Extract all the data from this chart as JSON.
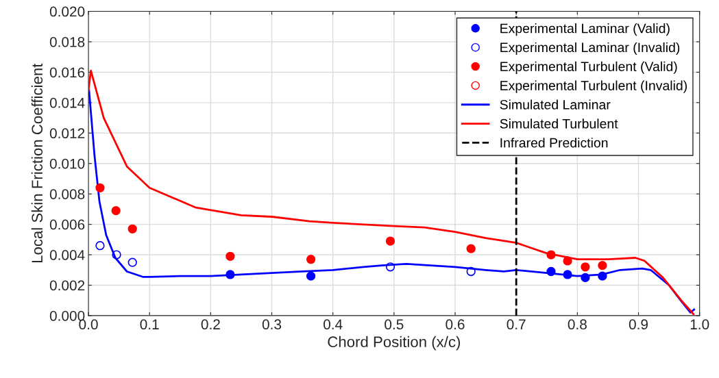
{
  "chart_data": {
    "type": "scatter",
    "xlabel": "Chord Position (x/c)",
    "ylabel": "Local Skin Friction Coefficient",
    "xlim": [
      0,
      1
    ],
    "xticks": [
      {
        "value": 0,
        "label": "0.0"
      },
      0.1,
      0.2,
      0.3,
      0.4,
      0.5,
      0.6,
      0.7,
      0.8,
      0.9,
      {
        "value": 1,
        "label": "1.0"
      }
    ],
    "ylim": [
      0,
      0.02
    ],
    "yticks": [
      {
        "value": 0,
        "label": "0.000"
      },
      {
        "value": 0.002,
        "label": "0.002"
      },
      {
        "value": 0.004,
        "label": "0.004"
      },
      {
        "value": 0.006,
        "label": "0.006"
      },
      {
        "value": 0.008,
        "label": "0.008"
      },
      {
        "value": 0.01,
        "label": "0.010"
      },
      {
        "value": 0.012,
        "label": "0.012"
      },
      {
        "value": 0.014,
        "label": "0.014"
      },
      {
        "value": 0.016,
        "label": "0.016"
      },
      {
        "value": 0.018,
        "label": "0.018"
      },
      {
        "value": 0.02,
        "label": "0.020"
      }
    ],
    "grid": true,
    "legend": "top right",
    "series": [
      {
        "name": "Experimental Laminar (Valid)",
        "marker": "circle",
        "color": "#0000ff",
        "x": [
          0.232,
          0.364,
          0.757,
          0.784,
          0.813,
          0.841
        ],
        "values": [
          0.0027,
          0.0026,
          0.0029,
          0.0027,
          0.0025,
          0.0026
        ]
      },
      {
        "name": "Experimental Laminar (Invalid)",
        "marker": "open circle",
        "color": "#0000ff",
        "x": [
          0.019,
          0.046,
          0.072,
          0.494,
          0.626
        ],
        "values": [
          0.0046,
          0.004,
          0.0035,
          0.0032,
          0.0029
        ]
      },
      {
        "name": "Experimental Turbulent (Valid)",
        "marker": "circle",
        "color": "#ff0000",
        "x": [
          0.019,
          0.045,
          0.072,
          0.232,
          0.364,
          0.494,
          0.626,
          0.757,
          0.784,
          0.813,
          0.841
        ],
        "values": [
          0.0084,
          0.0069,
          0.0057,
          0.0039,
          0.0037,
          0.0049,
          0.0044,
          0.004,
          0.0036,
          0.0032,
          0.0033
        ]
      },
      {
        "name": "Experimental Turbulent (Invalid)",
        "marker": "open circle",
        "color": "#ff0000"
      },
      {
        "name": "Simulated Laminar",
        "type": "line",
        "marker": "none",
        "line_style": "solid",
        "color": "#0000ff",
        "x": [
          0.001,
          0.01,
          0.018,
          0.029,
          0.044,
          0.063,
          0.089,
          0.1,
          0.15,
          0.2,
          0.25,
          0.3,
          0.35,
          0.4,
          0.45,
          0.48,
          0.52,
          0.56,
          0.6,
          0.65,
          0.68,
          0.7,
          0.75,
          0.8,
          0.84,
          0.87,
          0.906,
          0.92,
          0.95,
          0.969,
          0.985,
          0.991
        ],
        "values": [
          0.0148,
          0.0105,
          0.0075,
          0.0053,
          0.0038,
          0.0029,
          0.00255,
          0.00255,
          0.0026,
          0.0026,
          0.0027,
          0.0028,
          0.0029,
          0.003,
          0.0032,
          0.0033,
          0.0034,
          0.0033,
          0.0032,
          0.003,
          0.0029,
          0.003,
          0.0028,
          0.0026,
          0.0027,
          0.003,
          0.0031,
          0.003,
          0.002,
          0.001,
          0.0002,
          0.0004
        ]
      },
      {
        "name": "Simulated Turbulent",
        "type": "line",
        "marker": "none",
        "line_style": "solid",
        "color": "#ff0000",
        "x": [
          0.0,
          0.004,
          0.025,
          0.063,
          0.1,
          0.176,
          0.25,
          0.3,
          0.362,
          0.4,
          0.494,
          0.55,
          0.6,
          0.65,
          0.699,
          0.75,
          0.8,
          0.85,
          0.895,
          0.91,
          0.94,
          0.97,
          0.99
        ],
        "values": [
          0.0148,
          0.0161,
          0.013,
          0.0098,
          0.0084,
          0.0071,
          0.0066,
          0.0065,
          0.0062,
          0.0061,
          0.0059,
          0.0058,
          0.0055,
          0.0051,
          0.0048,
          0.0041,
          0.0037,
          0.0037,
          0.0038,
          0.0036,
          0.0025,
          0.001,
          0.0001
        ]
      }
    ],
    "ref_lines": [
      {
        "axis": "x",
        "value": 0.7,
        "label": "Infrared Prediction",
        "color": "#000000",
        "line_style": "dashed"
      }
    ]
  }
}
